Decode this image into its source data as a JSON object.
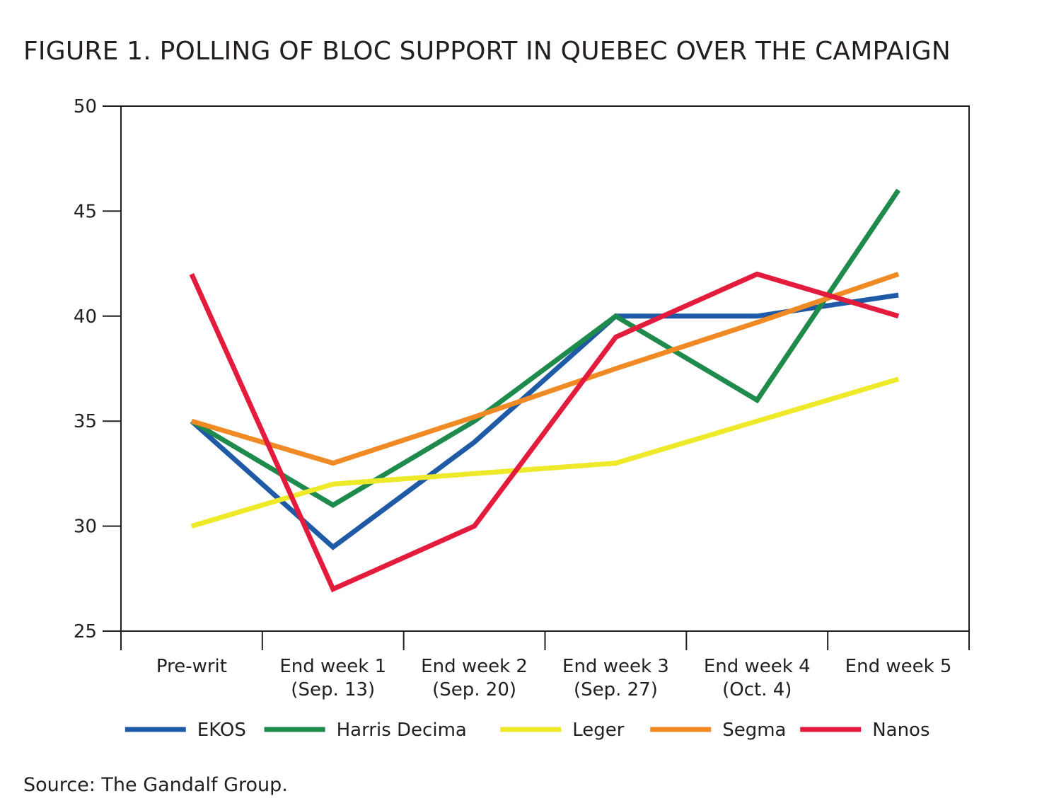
{
  "figure": {
    "title": "FIGURE 1. POLLING OF BLOC SUPPORT IN QUEBEC OVER THE CAMPAIGN",
    "source": "Source: The Gandalf Group."
  },
  "chart_data": {
    "type": "line",
    "title": "FIGURE 1. POLLING OF BLOC SUPPORT IN QUEBEC OVER THE CAMPAIGN",
    "xlabel": "",
    "ylabel": "",
    "ylim": [
      25,
      50
    ],
    "yticks": [
      25,
      30,
      35,
      40,
      45,
      50
    ],
    "grid": false,
    "legend_position": "bottom",
    "categories": [
      [
        "Pre-writ"
      ],
      [
        "End week 1",
        "(Sep. 13)"
      ],
      [
        "End week 2",
        "(Sep. 20)"
      ],
      [
        "End week 3",
        "(Sep. 27)"
      ],
      [
        "End week 4",
        "(Oct. 4)"
      ],
      [
        "End week 5"
      ]
    ],
    "series": [
      {
        "name": "EKOS",
        "color": "#1f5aa6",
        "values": [
          35,
          29,
          34,
          40,
          40,
          41
        ]
      },
      {
        "name": "Harris Decima",
        "color": "#1e8a4c",
        "values": [
          35,
          31,
          35,
          40,
          36,
          46
        ]
      },
      {
        "name": "Leger",
        "color": "#eeea2a",
        "values": [
          30,
          32,
          32.5,
          33,
          35,
          37
        ]
      },
      {
        "name": "Segma",
        "color": "#f08a24",
        "values": [
          35,
          33,
          35.2,
          37.5,
          39.7,
          42
        ]
      },
      {
        "name": "Nanos",
        "color": "#e31b3c",
        "values": [
          42,
          27,
          30,
          39,
          42,
          40
        ]
      }
    ]
  }
}
